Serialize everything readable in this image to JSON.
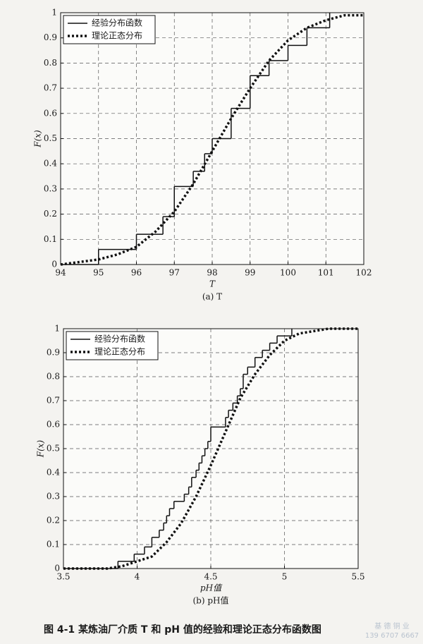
{
  "chart_data": [
    {
      "type": "line",
      "xlabel": "T",
      "ylabel": "F(x)",
      "caption": "(a) T",
      "xlim": [
        94,
        102
      ],
      "xticks": [
        94,
        95,
        96,
        97,
        98,
        99,
        100,
        101,
        102
      ],
      "ylim": [
        0,
        1
      ],
      "yticks": [
        0,
        0.1,
        0.2,
        0.3,
        0.4,
        0.5,
        0.6,
        0.7,
        0.8,
        0.9,
        1
      ],
      "grid": true,
      "legend": "upper left",
      "series": [
        {
          "name": "经验分布函数",
          "color": "#111111",
          "line_style": "solid",
          "step": true,
          "x": [
            94,
            95,
            96,
            96.7,
            97,
            97.5,
            97.8,
            98,
            98.5,
            99,
            99.5,
            100,
            100.5,
            101.1
          ],
          "values": [
            0,
            0.06,
            0.12,
            0.19,
            0.31,
            0.37,
            0.44,
            0.5,
            0.62,
            0.75,
            0.81,
            0.87,
            0.94,
            1
          ]
        },
        {
          "name": "理论正态分布",
          "color": "#111111",
          "line_style": "dotted",
          "step": false,
          "x": [
            94,
            94.5,
            95,
            95.5,
            96,
            96.5,
            97,
            97.5,
            98,
            98.5,
            99,
            99.5,
            100,
            100.5,
            101,
            101.5,
            102
          ],
          "values": [
            0,
            0.01,
            0.02,
            0.04,
            0.07,
            0.13,
            0.21,
            0.32,
            0.45,
            0.58,
            0.7,
            0.81,
            0.89,
            0.94,
            0.97,
            0.99,
            0.99
          ]
        }
      ]
    },
    {
      "type": "line",
      "xlabel": "pH值",
      "ylabel": "F(x)",
      "caption": "(b) pH值",
      "xlim": [
        3.5,
        5.5
      ],
      "xticks": [
        3.5,
        4,
        4.5,
        5,
        5.5
      ],
      "ylim": [
        0,
        1
      ],
      "yticks": [
        0,
        0.1,
        0.2,
        0.3,
        0.4,
        0.5,
        0.6,
        0.7,
        0.8,
        0.9,
        1
      ],
      "grid": true,
      "legend": "upper left",
      "series": [
        {
          "name": "经验分布函数",
          "color": "#111111",
          "line_style": "solid",
          "step": true,
          "x": [
            3.5,
            3.87,
            3.98,
            4.05,
            4.1,
            4.15,
            4.18,
            4.2,
            4.22,
            4.25,
            4.32,
            4.35,
            4.37,
            4.4,
            4.42,
            4.44,
            4.46,
            4.48,
            4.5,
            4.6,
            4.62,
            4.65,
            4.68,
            4.7,
            4.72,
            4.75,
            4.8,
            4.85,
            4.9,
            4.95,
            5.05
          ],
          "values": [
            0,
            0.03,
            0.06,
            0.09,
            0.13,
            0.16,
            0.19,
            0.22,
            0.25,
            0.28,
            0.31,
            0.34,
            0.38,
            0.41,
            0.44,
            0.47,
            0.5,
            0.53,
            0.59,
            0.63,
            0.66,
            0.69,
            0.72,
            0.75,
            0.81,
            0.84,
            0.88,
            0.91,
            0.94,
            0.97,
            1
          ]
        },
        {
          "name": "理论正态分布",
          "color": "#111111",
          "line_style": "dotted",
          "step": false,
          "x": [
            3.5,
            3.6,
            3.7,
            3.8,
            3.9,
            4.0,
            4.1,
            4.2,
            4.3,
            4.4,
            4.5,
            4.6,
            4.7,
            4.8,
            4.9,
            5.0,
            5.1,
            5.2,
            5.3,
            5.4,
            5.5
          ],
          "values": [
            0,
            0,
            0,
            0,
            0.01,
            0.03,
            0.05,
            0.11,
            0.19,
            0.3,
            0.43,
            0.57,
            0.71,
            0.81,
            0.89,
            0.95,
            0.98,
            0.99,
            1,
            1,
            1
          ]
        }
      ]
    }
  ],
  "figure_caption": "图 4-1   某炼油厂介质 T 和 pH 值的经验和理论正态分布函数图",
  "watermark": [
    "基 德 铜 业",
    "139 6707 6667"
  ]
}
